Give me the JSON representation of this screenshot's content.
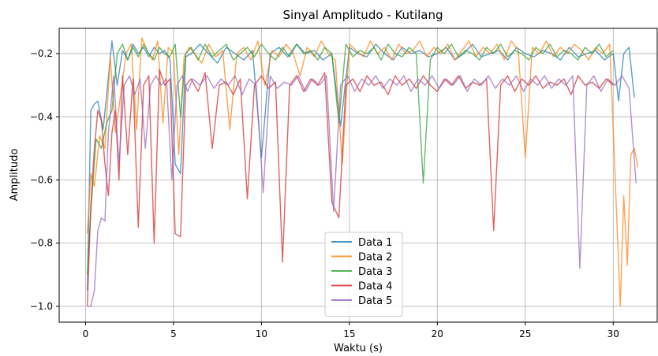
{
  "chart_data": {
    "type": "line",
    "title": "Sinyal Amplitudo - Kutilang",
    "xlabel": "Waktu (s)",
    "ylabel": "Amplitudo",
    "xlim": [
      -1.5,
      32.5
    ],
    "ylim": [
      -1.05,
      -0.12
    ],
    "xticks": [
      0,
      5,
      10,
      15,
      20,
      25,
      30
    ],
    "xtick_labels": [
      "0",
      "5",
      "10",
      "15",
      "20",
      "25",
      "30"
    ],
    "yticks": [
      -1.0,
      -0.8,
      -0.6,
      -0.4,
      -0.2
    ],
    "ytick_labels": [
      "−1.0",
      "−0.8",
      "−0.6",
      "−0.4",
      "−0.2"
    ],
    "grid": true,
    "legend_position": "lower center",
    "series": [
      {
        "name": "Data 1",
        "color": "#1f77b4",
        "x": [
          0.1,
          0.3,
          0.5,
          0.7,
          1.0,
          1.2,
          1.5,
          1.8,
          2.1,
          2.4,
          2.7,
          3.0,
          3.3,
          3.6,
          3.9,
          4.2,
          4.5,
          4.8,
          5.1,
          5.4,
          5.7,
          6.0,
          6.5,
          7.0,
          7.5,
          8.0,
          8.5,
          9.0,
          9.5,
          10.0,
          10.5,
          11.0,
          11.5,
          12.0,
          12.5,
          13.0,
          13.5,
          14.0,
          14.5,
          15.0,
          15.5,
          16.0,
          16.5,
          17.0,
          17.5,
          18.0,
          18.5,
          19.0,
          19.5,
          20.0,
          20.5,
          21.0,
          21.5,
          22.0,
          22.5,
          23.0,
          23.5,
          24.0,
          24.5,
          25.0,
          25.5,
          26.0,
          26.5,
          27.0,
          27.5,
          28.0,
          28.5,
          29.0,
          29.5,
          30.0,
          30.3,
          30.6,
          30.9,
          31.2
        ],
        "y": [
          -0.95,
          -0.38,
          -0.36,
          -0.35,
          -0.44,
          -0.33,
          -0.16,
          -0.3,
          -0.19,
          -0.22,
          -0.17,
          -0.2,
          -0.18,
          -0.21,
          -0.18,
          -0.2,
          -0.19,
          -0.22,
          -0.55,
          -0.58,
          -0.21,
          -0.2,
          -0.17,
          -0.2,
          -0.23,
          -0.18,
          -0.2,
          -0.22,
          -0.19,
          -0.53,
          -0.2,
          -0.18,
          -0.21,
          -0.17,
          -0.2,
          -0.19,
          -0.22,
          -0.2,
          -0.43,
          -0.18,
          -0.2,
          -0.21,
          -0.17,
          -0.2,
          -0.22,
          -0.18,
          -0.2,
          -0.19,
          -0.21,
          -0.2,
          -0.18,
          -0.22,
          -0.2,
          -0.17,
          -0.21,
          -0.2,
          -0.19,
          -0.22,
          -0.18,
          -0.2,
          -0.21,
          -0.19,
          -0.2,
          -0.22,
          -0.18,
          -0.21,
          -0.2,
          -0.19,
          -0.22,
          -0.2,
          -0.35,
          -0.2,
          -0.18,
          -0.34
        ]
      },
      {
        "name": "Data 2",
        "color": "#ff7f0e",
        "x": [
          0.1,
          0.3,
          0.5,
          0.8,
          1.1,
          1.4,
          1.7,
          2.0,
          2.3,
          2.6,
          2.9,
          3.2,
          3.5,
          3.8,
          4.1,
          4.4,
          4.7,
          5.0,
          5.3,
          5.6,
          5.9,
          6.2,
          6.6,
          7.0,
          7.4,
          7.8,
          8.2,
          8.6,
          9.0,
          9.4,
          9.8,
          10.2,
          10.6,
          11.0,
          11.4,
          11.8,
          12.2,
          12.6,
          13.0,
          13.4,
          13.8,
          14.2,
          14.6,
          15.0,
          15.4,
          15.8,
          16.2,
          16.6,
          17.0,
          17.4,
          17.8,
          18.2,
          18.6,
          19.0,
          19.4,
          19.8,
          20.2,
          20.6,
          21.0,
          21.4,
          21.8,
          22.2,
          22.6,
          23.0,
          23.4,
          23.8,
          24.2,
          24.6,
          25.0,
          25.4,
          25.8,
          26.2,
          26.6,
          27.0,
          27.4,
          27.8,
          28.2,
          28.6,
          29.0,
          29.4,
          29.8,
          30.1,
          30.4,
          30.6,
          30.8,
          31.0,
          31.2,
          31.4
        ],
        "y": [
          -0.77,
          -0.58,
          -0.62,
          -0.46,
          -0.5,
          -0.21,
          -0.45,
          -0.33,
          -0.2,
          -0.17,
          -0.44,
          -0.15,
          -0.19,
          -0.22,
          -0.16,
          -0.42,
          -0.18,
          -0.2,
          -0.52,
          -0.21,
          -0.18,
          -0.2,
          -0.23,
          -0.17,
          -0.21,
          -0.19,
          -0.44,
          -0.2,
          -0.18,
          -0.22,
          -0.16,
          -0.3,
          -0.19,
          -0.21,
          -0.17,
          -0.2,
          -0.27,
          -0.18,
          -0.21,
          -0.16,
          -0.2,
          -0.22,
          -0.55,
          -0.17,
          -0.19,
          -0.21,
          -0.16,
          -0.2,
          -0.18,
          -0.22,
          -0.17,
          -0.2,
          -0.19,
          -0.16,
          -0.21,
          -0.18,
          -0.2,
          -0.17,
          -0.22,
          -0.19,
          -0.16,
          -0.21,
          -0.18,
          -0.2,
          -0.17,
          -0.22,
          -0.16,
          -0.19,
          -0.53,
          -0.18,
          -0.2,
          -0.16,
          -0.21,
          -0.18,
          -0.2,
          -0.17,
          -0.19,
          -0.22,
          -0.18,
          -0.2,
          -0.17,
          -0.58,
          -1.0,
          -0.65,
          -0.87,
          -0.52,
          -0.5,
          -0.56
        ]
      },
      {
        "name": "Data 3",
        "color": "#2ca02c",
        "x": [
          0.1,
          0.3,
          0.6,
          0.9,
          1.2,
          1.5,
          1.8,
          2.1,
          2.4,
          2.7,
          3.0,
          3.3,
          3.6,
          3.9,
          4.2,
          4.5,
          4.8,
          5.1,
          5.4,
          5.7,
          6.0,
          6.4,
          6.8,
          7.2,
          7.6,
          8.0,
          8.4,
          8.8,
          9.2,
          9.6,
          10.0,
          10.4,
          10.8,
          11.2,
          11.6,
          12.0,
          12.4,
          12.8,
          13.2,
          13.6,
          14.0,
          14.4,
          14.8,
          15.2,
          15.6,
          16.0,
          16.4,
          16.8,
          17.2,
          17.6,
          18.0,
          18.4,
          18.8,
          19.2,
          19.6,
          20.0,
          20.4,
          20.8,
          21.2,
          21.6,
          22.0,
          22.4,
          22.8,
          23.2,
          23.6,
          24.0,
          24.4,
          24.8,
          25.2,
          25.6,
          26.0,
          26.4,
          26.8,
          27.2,
          27.6,
          28.0,
          28.4,
          28.8,
          29.2,
          29.6,
          30.0
        ],
        "y": [
          -0.9,
          -0.7,
          -0.47,
          -0.5,
          -0.42,
          -0.38,
          -0.2,
          -0.17,
          -0.22,
          -0.18,
          -0.21,
          -0.17,
          -0.2,
          -0.22,
          -0.18,
          -0.2,
          -0.21,
          -0.17,
          -0.4,
          -0.2,
          -0.18,
          -0.22,
          -0.17,
          -0.21,
          -0.19,
          -0.17,
          -0.22,
          -0.2,
          -0.18,
          -0.21,
          -0.17,
          -0.2,
          -0.22,
          -0.18,
          -0.21,
          -0.17,
          -0.2,
          -0.19,
          -0.22,
          -0.18,
          -0.2,
          -0.42,
          -0.17,
          -0.21,
          -0.19,
          -0.2,
          -0.18,
          -0.22,
          -0.17,
          -0.2,
          -0.21,
          -0.18,
          -0.2,
          -0.61,
          -0.22,
          -0.18,
          -0.2,
          -0.17,
          -0.21,
          -0.19,
          -0.2,
          -0.22,
          -0.18,
          -0.2,
          -0.17,
          -0.21,
          -0.19,
          -0.2,
          -0.22,
          -0.18,
          -0.2,
          -0.17,
          -0.21,
          -0.19,
          -0.2,
          -0.22,
          -0.18,
          -0.2,
          -0.17,
          -0.21,
          -0.19
        ]
      },
      {
        "name": "Data 4",
        "color": "#d62728",
        "x": [
          0.1,
          0.3,
          0.5,
          0.7,
          0.9,
          1.1,
          1.3,
          1.5,
          1.7,
          1.9,
          2.1,
          2.4,
          2.7,
          3.0,
          3.3,
          3.6,
          3.9,
          4.2,
          4.5,
          4.8,
          5.1,
          5.4,
          5.7,
          6.0,
          6.4,
          6.8,
          7.2,
          7.6,
          8.0,
          8.4,
          8.8,
          9.2,
          9.6,
          10.0,
          10.4,
          10.8,
          11.2,
          11.6,
          12.0,
          12.4,
          12.8,
          13.2,
          13.6,
          14.0,
          14.4,
          14.8,
          15.2,
          15.6,
          16.0,
          16.4,
          16.8,
          17.2,
          17.6,
          18.0,
          18.4,
          18.8,
          19.2,
          19.6,
          20.0,
          20.4,
          20.8,
          21.2,
          21.6,
          22.0,
          22.4,
          22.8,
          23.2,
          23.6,
          24.0,
          24.4,
          24.8,
          25.2,
          25.6,
          26.0,
          26.4,
          26.8,
          27.2,
          27.6,
          28.0,
          28.4,
          28.8,
          29.2,
          29.6,
          30.0
        ],
        "y": [
          -1.0,
          -0.68,
          -0.5,
          -0.38,
          -0.41,
          -0.55,
          -0.65,
          -0.45,
          -0.38,
          -0.6,
          -0.27,
          -0.52,
          -0.28,
          -0.75,
          -0.3,
          -0.27,
          -0.8,
          -0.25,
          -0.3,
          -0.28,
          -0.77,
          -0.78,
          -0.3,
          -0.28,
          -0.32,
          -0.26,
          -0.5,
          -0.3,
          -0.29,
          -0.33,
          -0.28,
          -0.66,
          -0.3,
          -0.27,
          -0.31,
          -0.29,
          -0.86,
          -0.3,
          -0.27,
          -0.32,
          -0.28,
          -0.3,
          -0.26,
          -0.67,
          -0.72,
          -0.3,
          -0.28,
          -0.32,
          -0.27,
          -0.3,
          -0.29,
          -0.33,
          -0.27,
          -0.3,
          -0.28,
          -0.31,
          -0.27,
          -0.3,
          -0.32,
          -0.28,
          -0.3,
          -0.27,
          -0.31,
          -0.29,
          -0.3,
          -0.28,
          -0.76,
          -0.3,
          -0.27,
          -0.32,
          -0.28,
          -0.3,
          -0.27,
          -0.31,
          -0.29,
          -0.3,
          -0.28,
          -0.33,
          -0.27,
          -0.3,
          -0.29,
          -0.31,
          -0.28,
          -0.3
        ]
      },
      {
        "name": "Data 5",
        "color": "#9467bd",
        "x": [
          0.1,
          0.3,
          0.5,
          0.7,
          0.9,
          1.1,
          1.3,
          1.6,
          1.9,
          2.2,
          2.5,
          2.8,
          3.1,
          3.4,
          3.7,
          4.0,
          4.3,
          4.6,
          4.9,
          5.2,
          5.5,
          5.8,
          6.1,
          6.5,
          6.9,
          7.3,
          7.7,
          8.1,
          8.5,
          8.9,
          9.3,
          9.7,
          10.1,
          10.5,
          10.9,
          11.3,
          11.7,
          12.1,
          12.5,
          12.9,
          13.3,
          13.7,
          14.1,
          14.5,
          14.9,
          15.3,
          15.7,
          16.1,
          16.5,
          16.9,
          17.3,
          17.7,
          18.1,
          18.5,
          18.9,
          19.3,
          19.7,
          20.1,
          20.5,
          20.9,
          21.3,
          21.7,
          22.1,
          22.5,
          22.9,
          23.3,
          23.7,
          24.1,
          24.5,
          24.9,
          25.3,
          25.7,
          26.1,
          26.5,
          26.9,
          27.3,
          27.7,
          28.1,
          28.5,
          28.9,
          29.3,
          29.7,
          30.1,
          30.5,
          30.9,
          31.3
        ],
        "y": [
          -1.0,
          -1.0,
          -0.95,
          -0.76,
          -0.72,
          -0.73,
          -0.45,
          -0.27,
          -0.55,
          -0.3,
          -0.27,
          -0.33,
          -0.28,
          -0.5,
          -0.3,
          -0.27,
          -0.3,
          -0.28,
          -0.6,
          -0.3,
          -0.27,
          -0.32,
          -0.28,
          -0.3,
          -0.27,
          -0.31,
          -0.28,
          -0.3,
          -0.27,
          -0.33,
          -0.28,
          -0.3,
          -0.64,
          -0.27,
          -0.31,
          -0.29,
          -0.3,
          -0.27,
          -0.32,
          -0.28,
          -0.3,
          -0.27,
          -0.7,
          -0.3,
          -0.27,
          -0.32,
          -0.28,
          -0.3,
          -0.27,
          -0.31,
          -0.28,
          -0.3,
          -0.27,
          -0.32,
          -0.28,
          -0.3,
          -0.27,
          -0.31,
          -0.28,
          -0.3,
          -0.27,
          -0.32,
          -0.28,
          -0.3,
          -0.27,
          -0.31,
          -0.28,
          -0.3,
          -0.27,
          -0.32,
          -0.28,
          -0.3,
          -0.27,
          -0.31,
          -0.28,
          -0.3,
          -0.27,
          -0.88,
          -0.3,
          -0.27,
          -0.32,
          -0.28,
          -0.3,
          -0.27,
          -0.31,
          -0.61
        ]
      }
    ]
  }
}
